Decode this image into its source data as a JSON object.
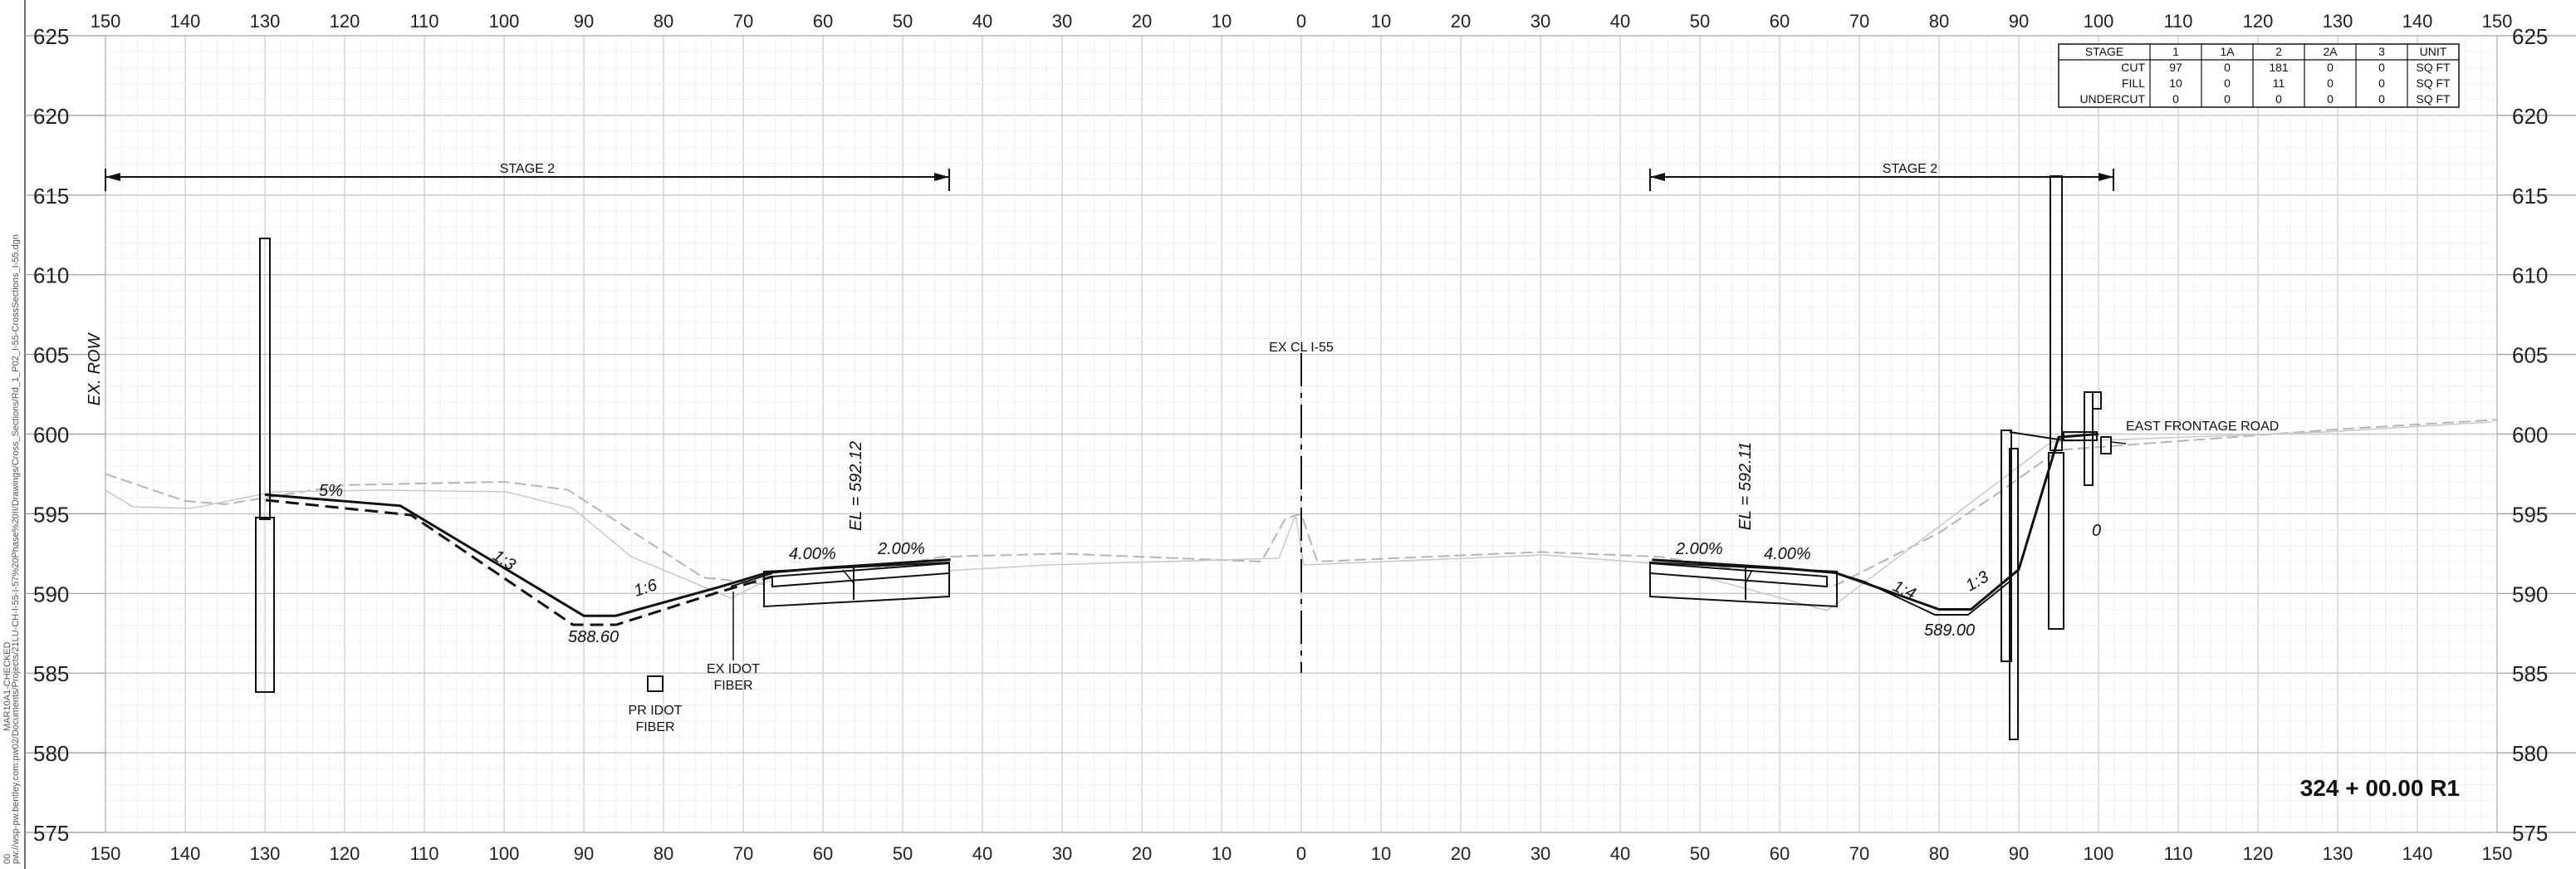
{
  "sheet": {
    "station_label": "324 + 00.00  R1",
    "side_path": "pw://wsp-pw.bentley.com:pw02/Documents/Projects/21LU-CH-I-55-I-57%20Phase%20II/Drawings/Cross_Sections/Rd_1_P02_I-55-CrossSections_I-55.dgn",
    "side_date": "00",
    "side_model": "MAR10A1-CHECKED"
  },
  "offset_ticks": [
    "150",
    "140",
    "130",
    "120",
    "110",
    "100",
    "90",
    "80",
    "70",
    "60",
    "50",
    "40",
    "30",
    "20",
    "10",
    "0",
    "10",
    "20",
    "30",
    "40",
    "50",
    "60",
    "70",
    "80",
    "90",
    "100",
    "110",
    "120",
    "130",
    "140",
    "150"
  ],
  "elevations": [
    "625",
    "620",
    "615",
    "610",
    "605",
    "600",
    "595",
    "590",
    "585",
    "580",
    "575"
  ],
  "labels": {
    "stage2_left": "STAGE 2",
    "stage2_right": "STAGE 2",
    "ex_cl": "EX CL I-55",
    "ex_row": "EX. ROW",
    "east_frontage": "EAST FRONTAGE ROAD",
    "el_left": "EL = 592.12",
    "el_right": "EL = 592.11",
    "pr_idot_fiber": "PR IDOT",
    "pr_idot_fiber2": "FIBER",
    "ex_idot_fiber": "EX IDOT",
    "ex_idot_fiber2": "FIBER",
    "slope_5pct": "5%",
    "slope_1_3_left": "1:3",
    "slope_1_6": "1:6",
    "low_left": "588.60",
    "pct_4_left": "4.00%",
    "pct_2_left": "2.00%",
    "pct_2_right": "2.00%",
    "pct_4_right": "4.00%",
    "slope_1_4": "1:4",
    "slope_1_3_right": "1:3",
    "low_right": "589.00",
    "zero_mark": "0"
  },
  "quantity_table": {
    "headers": [
      "STAGE",
      "1",
      "1A",
      "2",
      "2A",
      "3",
      "UNIT"
    ],
    "rows": [
      [
        "CUT",
        "97",
        "0",
        "181",
        "0",
        "0",
        "SQ FT"
      ],
      [
        "FILL",
        "10",
        "0",
        "11",
        "0",
        "0",
        "SQ FT"
      ],
      [
        "UNDERCUT",
        "0",
        "0",
        "0",
        "0",
        "0",
        "SQ FT"
      ]
    ]
  },
  "chart_data": {
    "type": "line",
    "title": "",
    "xlabel": "",
    "ylabel": "",
    "xlim": [
      -150,
      150
    ],
    "ylim": [
      575,
      625
    ],
    "grid": true,
    "series": [
      {
        "values": [
          [
            -130,
            596.2
          ],
          [
            -113,
            595.5
          ],
          [
            -90,
            588.6
          ],
          [
            -86,
            588.6
          ],
          [
            -73,
            590.4
          ],
          [
            -67,
            591.3
          ],
          [
            -60,
            591.6
          ],
          [
            -44,
            592.12
          ]
        ]
      },
      {
        "values": [
          [
            44,
            592.11
          ],
          [
            60,
            591.6
          ],
          [
            67,
            591.3
          ],
          [
            71,
            590.6
          ],
          [
            80,
            589.0
          ],
          [
            84,
            589.0
          ],
          [
            90,
            591.5
          ],
          [
            95,
            599.8
          ],
          [
            100,
            600.0
          ]
        ]
      },
      {
        "values": [
          [
            -150,
            597.5
          ],
          [
            -140,
            595.8
          ],
          [
            -135,
            595.6
          ],
          [
            -120,
            596.8
          ],
          [
            -100,
            597.0
          ],
          [
            -92,
            596.5
          ],
          [
            -75,
            591.0
          ],
          [
            -66,
            590.5
          ],
          [
            -45,
            592.3
          ],
          [
            -30,
            592.5
          ],
          [
            -5,
            592.0
          ],
          [
            -2,
            594.7
          ],
          [
            0,
            595.0
          ],
          [
            2,
            592.0
          ],
          [
            30,
            592.6
          ],
          [
            45,
            592.3
          ],
          [
            67,
            590.5
          ],
          [
            80,
            593.8
          ],
          [
            88,
            596.5
          ],
          [
            95,
            599.0
          ],
          [
            130,
            600.3
          ],
          [
            150,
            600.9
          ]
        ]
      }
    ]
  },
  "colors": {
    "grid_minor": "#ececec",
    "grid_major": "#c8c8c8",
    "line": "#111111",
    "existing": "#b5b5b5"
  }
}
